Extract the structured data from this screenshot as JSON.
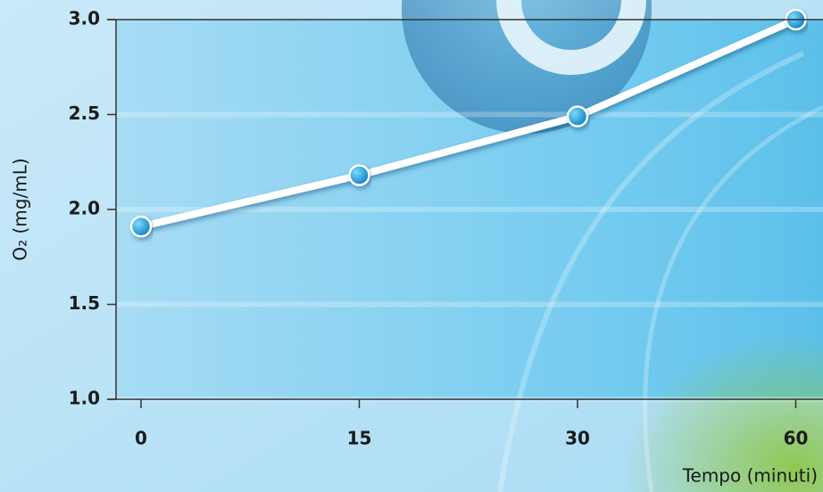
{
  "chart_data": {
    "type": "line",
    "categories": [
      "0",
      "15",
      "30",
      "60"
    ],
    "values": [
      1.91,
      2.18,
      2.49,
      3.0
    ],
    "ylim": [
      1.0,
      3.0
    ],
    "yticks": [
      {
        "value": 1.0,
        "label": "1.0"
      },
      {
        "value": 1.5,
        "label": "1.5"
      },
      {
        "value": 2.0,
        "label": "2.0"
      },
      {
        "value": 2.5,
        "label": "2.5"
      },
      {
        "value": 3.0,
        "label": "3.0"
      }
    ],
    "ylabel": "O₂ (mg/mL)",
    "xlabel": "Tempo (minuti)",
    "color": "#ffffff",
    "marker_color": "#1aa0e0",
    "grid": true
  }
}
